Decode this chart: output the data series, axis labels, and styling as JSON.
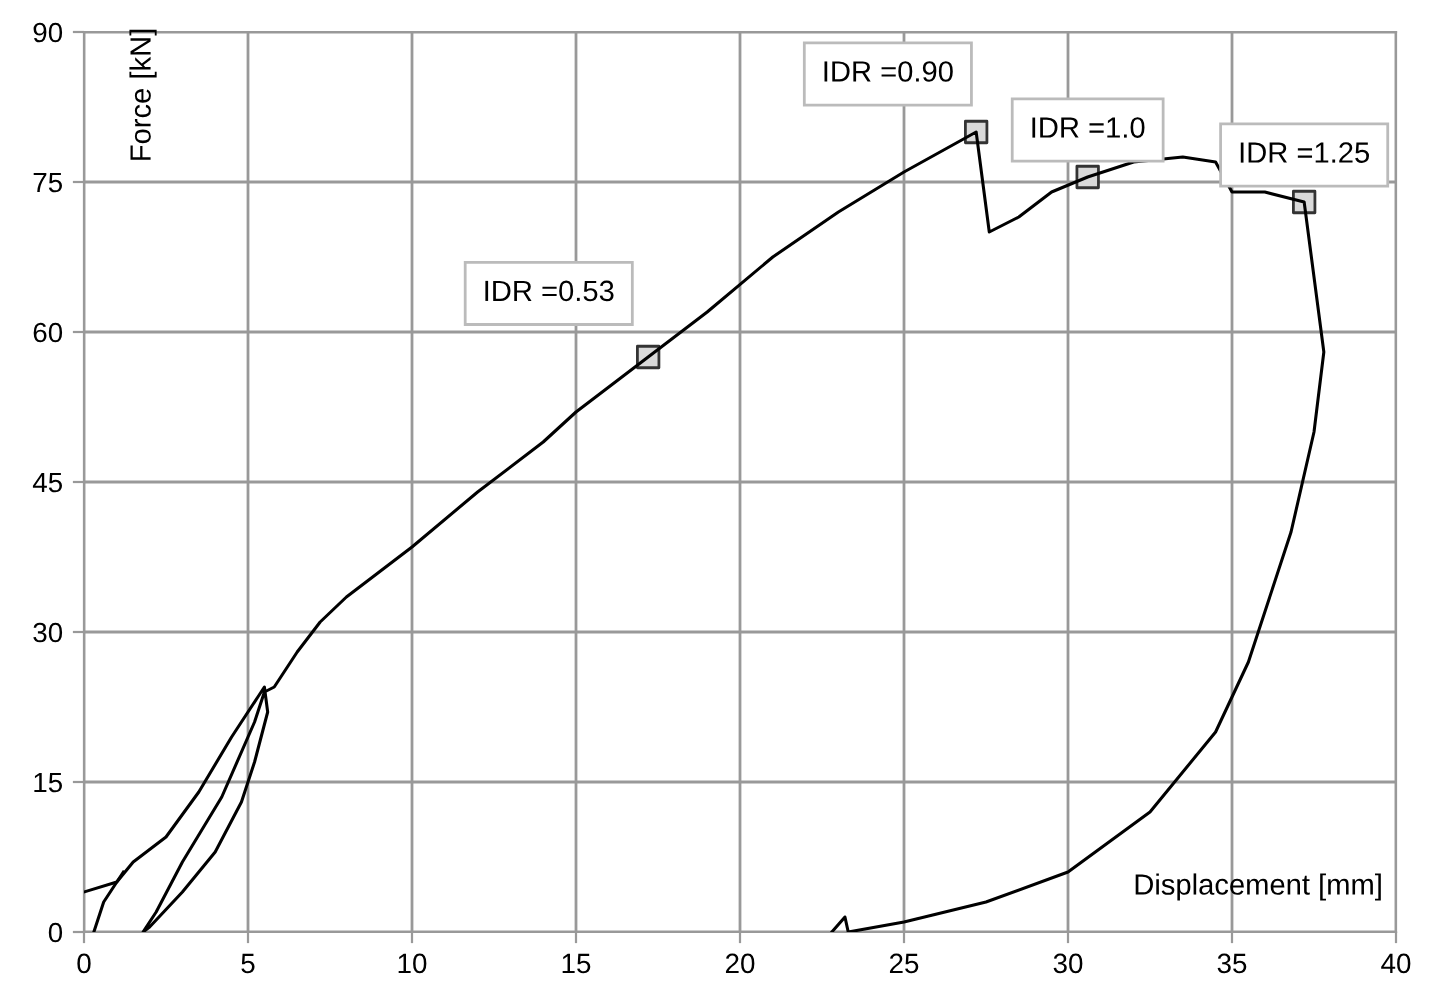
{
  "chart_data": {
    "type": "line",
    "xlabel": "Displacement [mm]",
    "ylabel": "Force [kN]",
    "xlim": [
      0,
      40
    ],
    "ylim": [
      0,
      90
    ],
    "xticks": [
      0,
      5,
      10,
      15,
      20,
      25,
      30,
      35,
      40
    ],
    "yticks": [
      0,
      15,
      30,
      45,
      60,
      75,
      90
    ],
    "grid": true,
    "legend": false,
    "series": [
      {
        "color": "#000000",
        "marker": "none",
        "x": [
          0.3,
          0.6,
          1.0,
          1.2
        ],
        "values": [
          0,
          3,
          5,
          6
        ]
      },
      {
        "color": "#000000",
        "marker": "none",
        "x": [
          0,
          1,
          1.5,
          2.5,
          3.5,
          4.5,
          5.3,
          5.5,
          5.6,
          5.2,
          4.8,
          4,
          3,
          2,
          1.8,
          2.2,
          3,
          4.2,
          5.2,
          5.5,
          5.8,
          6.5,
          7.2,
          8,
          10,
          12,
          14,
          15,
          17.2,
          19,
          21,
          23,
          25,
          27.2,
          27.6,
          28.5,
          29.5,
          30.6,
          32,
          33.5,
          34.5,
          35,
          36,
          37.2,
          37.8,
          37.5,
          36.8,
          35.5,
          34.5,
          32.5,
          30,
          27.5,
          25,
          23.3,
          23.2,
          22.8
        ],
        "values": [
          4,
          5,
          7,
          9.5,
          14,
          19.5,
          23.5,
          24.5,
          22,
          17,
          13,
          8,
          4,
          0.5,
          0,
          2,
          7,
          13.5,
          21,
          24,
          24.5,
          28,
          31,
          33.5,
          38.5,
          44,
          49,
          52,
          57.5,
          62,
          67.5,
          72,
          76,
          80,
          70,
          71.5,
          74,
          75.5,
          77,
          77.5,
          77,
          74,
          74,
          73,
          58,
          50,
          40,
          27,
          20,
          12,
          6,
          3,
          1,
          0,
          1.5,
          0
        ]
      },
      {
        "type": "scatter",
        "color": "#d9d9d9",
        "marker": "square",
        "x": [
          17.2,
          27.2,
          30.6,
          37.2
        ],
        "values": [
          57.5,
          80,
          75.5,
          73
        ]
      }
    ],
    "annotations": [
      {
        "text": "IDR =0.53",
        "x": 17.2,
        "y": 57.5
      },
      {
        "text": "IDR =0.90",
        "x": 27.2,
        "y": 80
      },
      {
        "text": "IDR =1.0",
        "x": 30.6,
        "y": 75.5
      },
      {
        "text": "IDR =1.25",
        "x": 37.2,
        "y": 73
      }
    ]
  }
}
